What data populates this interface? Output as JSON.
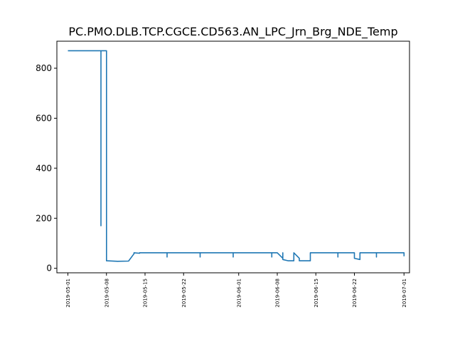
{
  "chart_data": {
    "type": "line",
    "title": "PC.PMO.DLB.TCP.CGCE.CD563.AN_LPC_Jrn_Brg_NDE_Temp",
    "xlabel": "",
    "ylabel": "",
    "x_type": "date",
    "xlim": [
      "2019-04-29",
      "2019-07-02"
    ],
    "ylim": [
      -18,
      908
    ],
    "grid": false,
    "legend": "none",
    "xticks": [
      "2019-05-01",
      "2019-05-08",
      "2019-05-15",
      "2019-05-22",
      "2019-06-01",
      "2019-06-08",
      "2019-06-15",
      "2019-06-22",
      "2019-07-01"
    ],
    "yticks": [
      0,
      200,
      400,
      600,
      800
    ],
    "series": [
      {
        "color": "#1f77b4",
        "x": [
          "2019-05-01",
          "2019-05-07",
          "2019-05-07",
          "2019-05-07",
          "2019-05-08",
          "2019-05-08",
          "2019-05-10",
          "2019-05-12",
          "2019-05-13",
          "2019-05-13",
          "2019-05-14",
          "2019-05-14",
          "2019-05-19",
          "2019-05-19",
          "2019-05-19",
          "2019-05-25",
          "2019-05-25",
          "2019-05-25",
          "2019-05-31",
          "2019-05-31",
          "2019-05-31",
          "2019-06-07",
          "2019-06-07",
          "2019-06-07",
          "2019-06-08",
          "2019-06-09",
          "2019-06-09",
          "2019-06-09",
          "2019-06-10",
          "2019-06-11",
          "2019-06-11",
          "2019-06-11",
          "2019-06-12",
          "2019-06-12",
          "2019-06-13",
          "2019-06-14",
          "2019-06-14",
          "2019-06-19",
          "2019-06-19",
          "2019-06-19",
          "2019-06-22",
          "2019-06-22",
          "2019-06-23",
          "2019-06-23",
          "2019-06-26",
          "2019-06-26",
          "2019-06-26",
          "2019-07-01",
          "2019-07-01"
        ],
        "y": [
          870,
          870,
          170,
          870,
          870,
          30,
          28,
          29,
          58,
          62,
          60,
          62,
          62,
          45,
          62,
          62,
          45,
          62,
          62,
          45,
          62,
          62,
          45,
          62,
          62,
          40,
          62,
          35,
          30,
          30,
          60,
          62,
          40,
          30,
          30,
          30,
          62,
          62,
          45,
          62,
          62,
          40,
          35,
          62,
          62,
          45,
          62,
          62,
          48
        ]
      }
    ]
  }
}
